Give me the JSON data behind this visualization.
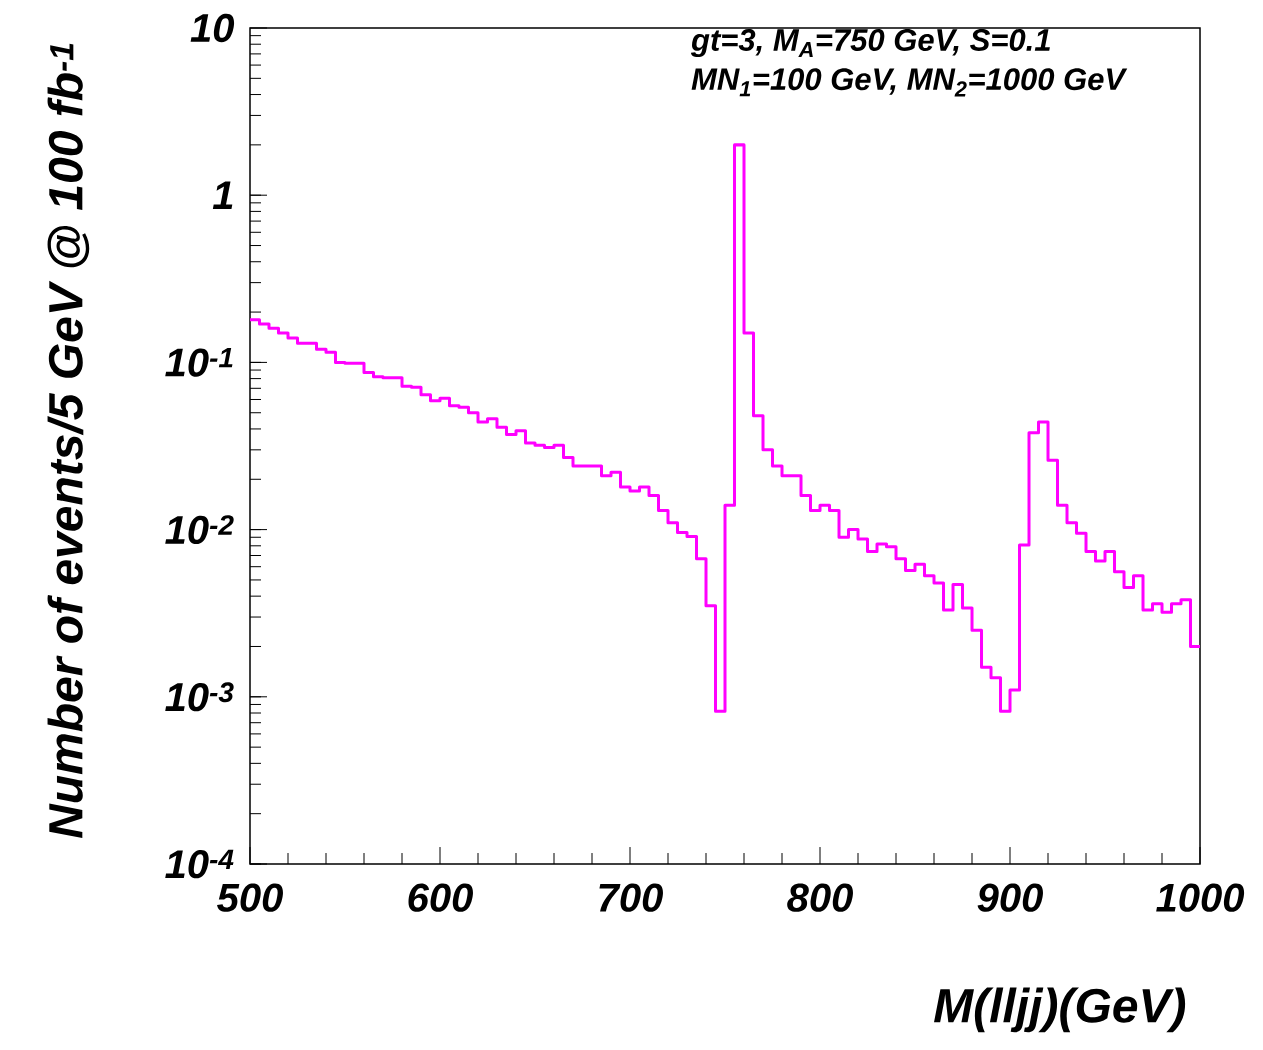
{
  "chart_data": {
    "type": "histogram",
    "xlabel": "M(lljj)(GeV)",
    "ylabel": "Number of events/5 GeV @ 100 fb$^{-1}$",
    "annotations": [
      "gt=3, M$_{A}$=750 GeV, S=0.1",
      "MN$_{1}$=100 GeV, MN$_{2}$=1000 GeV"
    ],
    "bins": [
      500,
      505,
      510,
      515,
      520,
      525,
      530,
      535,
      540,
      545,
      550,
      555,
      560,
      565,
      570,
      575,
      580,
      585,
      590,
      595,
      600,
      605,
      610,
      615,
      620,
      625,
      630,
      635,
      640,
      645,
      650,
      655,
      660,
      665,
      670,
      675,
      680,
      685,
      690,
      695,
      700,
      705,
      710,
      715,
      720,
      725,
      730,
      735,
      740,
      745,
      750,
      755,
      760,
      765,
      770,
      775,
      780,
      785,
      790,
      795,
      800,
      805,
      810,
      815,
      820,
      825,
      830,
      835,
      840,
      845,
      850,
      855,
      860,
      865,
      870,
      875,
      880,
      885,
      890,
      895,
      900,
      905,
      910,
      915,
      920,
      925,
      930,
      935,
      940,
      945,
      950,
      955,
      960,
      965,
      970,
      975,
      980,
      985,
      990,
      995,
      1000
    ],
    "values": [
      0.18,
      0.17,
      0.16,
      0.15,
      0.14,
      0.13,
      0.13,
      0.12,
      0.115,
      0.1,
      0.099,
      0.099,
      0.087,
      0.082,
      0.081,
      0.081,
      0.072,
      0.071,
      0.064,
      0.059,
      0.061,
      0.055,
      0.054,
      0.05,
      0.044,
      0.046,
      0.041,
      0.037,
      0.039,
      0.033,
      0.032,
      0.031,
      0.032,
      0.027,
      0.024,
      0.024,
      0.024,
      0.021,
      0.022,
      0.018,
      0.017,
      0.018,
      0.016,
      0.013,
      0.011,
      0.0096,
      0.0091,
      0.0067,
      0.0035,
      0.00082,
      0.014,
      2.0,
      0.15,
      0.048,
      0.03,
      0.024,
      0.021,
      0.021,
      0.016,
      0.013,
      0.014,
      0.013,
      0.009,
      0.01,
      0.0088,
      0.0074,
      0.0082,
      0.0079,
      0.0067,
      0.0057,
      0.0062,
      0.0053,
      0.0048,
      0.0033,
      0.0047,
      0.0034,
      0.0025,
      0.0015,
      0.0013,
      0.00082,
      0.0011,
      0.0081,
      0.038,
      0.044,
      0.026,
      0.014,
      0.011,
      0.0095,
      0.0074,
      0.0065,
      0.0074,
      0.0056,
      0.0045,
      0.0053,
      0.0033,
      0.0036,
      0.0032,
      0.0036,
      0.0038,
      0.002
    ],
    "color": "#ff00ff",
    "log": "y",
    "xlim": [
      500,
      1000
    ],
    "xticks": [
      500,
      600,
      700,
      800,
      900,
      1000
    ],
    "ylim": [
      0.0001,
      10
    ],
    "yticks": [
      {
        "value": 0.0001,
        "label": "10$^{-4}$"
      },
      {
        "value": 0.001,
        "label": "10$^{-3}$"
      },
      {
        "value": 0.01,
        "label": "10$^{-2}$"
      },
      {
        "value": 0.1,
        "label": "10$^{-1}$"
      },
      1,
      10
    ]
  }
}
